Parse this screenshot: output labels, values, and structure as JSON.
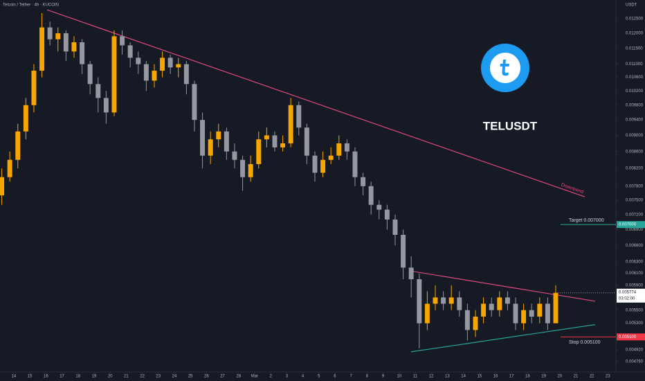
{
  "chart_data": {
    "type": "candlestick",
    "title": "Telcoin / Tether · 4h · KUCOIN",
    "symbol": "TELUSDT",
    "currency": "USDT",
    "log_scale": true,
    "grid": false,
    "up_color": "#f7a600",
    "down_color": "#9598a1",
    "xlim": [
      -0.86,
      37.5
    ],
    "ylim": [
      0.00462,
      0.01318
    ],
    "xticks": [
      {
        "value": 0,
        "label": "14"
      },
      {
        "value": 1,
        "label": "15"
      },
      {
        "value": 2,
        "label": "16"
      },
      {
        "value": 3,
        "label": "17"
      },
      {
        "value": 4,
        "label": "18"
      },
      {
        "value": 5,
        "label": "19"
      },
      {
        "value": 6,
        "label": "20"
      },
      {
        "value": 7,
        "label": "21"
      },
      {
        "value": 8,
        "label": "22"
      },
      {
        "value": 9,
        "label": "23"
      },
      {
        "value": 10,
        "label": "24"
      },
      {
        "value": 11,
        "label": "25"
      },
      {
        "value": 12,
        "label": "26"
      },
      {
        "value": 13,
        "label": "27"
      },
      {
        "value": 14,
        "label": "28"
      },
      {
        "value": 15,
        "label": "Mar"
      },
      {
        "value": 16,
        "label": "2"
      },
      {
        "value": 17,
        "label": "3"
      },
      {
        "value": 18,
        "label": "4"
      },
      {
        "value": 19,
        "label": "5"
      },
      {
        "value": 20,
        "label": "6"
      },
      {
        "value": 21,
        "label": "7"
      },
      {
        "value": 22,
        "label": "8"
      },
      {
        "value": 23,
        "label": "9"
      },
      {
        "value": 24,
        "label": "10"
      },
      {
        "value": 25,
        "label": "11"
      },
      {
        "value": 26,
        "label": "12"
      },
      {
        "value": 27,
        "label": "13"
      },
      {
        "value": 28,
        "label": "14"
      },
      {
        "value": 29,
        "label": "15"
      },
      {
        "value": 30,
        "label": "16"
      },
      {
        "value": 31,
        "label": "17"
      },
      {
        "value": 32,
        "label": "18"
      },
      {
        "value": 33,
        "label": "19"
      },
      {
        "value": 34,
        "label": "20"
      },
      {
        "value": 35,
        "label": "21"
      },
      {
        "value": 36,
        "label": "22"
      },
      {
        "value": 37,
        "label": "23"
      }
    ],
    "yticks": [
      {
        "value": 0.0125,
        "label": "0.012500"
      },
      {
        "value": 0.012,
        "label": "0.012000"
      },
      {
        "value": 0.0115,
        "label": "0.011500"
      },
      {
        "value": 0.011,
        "label": "0.011000"
      },
      {
        "value": 0.0106,
        "label": "0.010600"
      },
      {
        "value": 0.0102,
        "label": "0.010200"
      },
      {
        "value": 0.0098,
        "label": "0.009800"
      },
      {
        "value": 0.0094,
        "label": "0.009400"
      },
      {
        "value": 0.009,
        "label": "0.009000"
      },
      {
        "value": 0.0086,
        "label": "0.008600"
      },
      {
        "value": 0.0082,
        "label": "0.008200"
      },
      {
        "value": 0.0078,
        "label": "0.007800"
      },
      {
        "value": 0.0075,
        "label": "0.007500"
      },
      {
        "value": 0.0072,
        "label": "0.007200"
      },
      {
        "value": 0.0069,
        "label": "0.006900"
      },
      {
        "value": 0.0066,
        "label": "0.006600"
      },
      {
        "value": 0.0063,
        "label": "0.006300"
      },
      {
        "value": 0.0061,
        "label": "0.006100"
      },
      {
        "value": 0.0059,
        "label": "0.005900"
      },
      {
        "value": 0.0055,
        "label": "0.005500"
      },
      {
        "value": 0.0053,
        "label": "0.005300"
      },
      {
        "value": 0.00492,
        "label": "0.004920"
      },
      {
        "value": 0.00476,
        "label": "0.004760"
      }
    ],
    "x": [
      -0.75,
      -0.25,
      0.25,
      0.75,
      1.25,
      1.75,
      2.25,
      2.75,
      3.25,
      3.75,
      4.25,
      4.75,
      5.25,
      5.75,
      6.25,
      6.75,
      7.25,
      7.75,
      8.25,
      8.75,
      9.25,
      9.75,
      10.25,
      10.75,
      11.25,
      11.75,
      12.25,
      12.75,
      13.25,
      13.75,
      14.25,
      14.75,
      15.25,
      15.75,
      16.25,
      16.75,
      17.25,
      17.75,
      18.25,
      18.75,
      19.25,
      19.75,
      20.25,
      20.75,
      21.25,
      21.75,
      22.25,
      22.75,
      23.25,
      23.75,
      24.25,
      24.75,
      25.25,
      25.75,
      26.25,
      26.75,
      27.25,
      27.75,
      28.25,
      28.75,
      29.25,
      29.75,
      30.25,
      30.75,
      31.25,
      31.75,
      32.25,
      32.75,
      33.25,
      33.75
    ],
    "open": [
      0.0076,
      0.008,
      0.0084,
      0.0091,
      0.0098,
      0.0108,
      0.0122,
      0.0118,
      0.012,
      0.0114,
      0.0117,
      0.011,
      0.0104,
      0.01,
      0.0096,
      0.0119,
      0.0116,
      0.0112,
      0.011,
      0.0105,
      0.0108,
      0.0112,
      0.0109,
      0.011,
      0.0104,
      0.0094,
      0.0085,
      0.0089,
      0.0091,
      0.0086,
      0.0084,
      0.008,
      0.0083,
      0.0089,
      0.009,
      0.0087,
      0.0088,
      0.0098,
      0.0092,
      0.0085,
      0.0081,
      0.0084,
      0.0085,
      0.0088,
      0.0086,
      0.008,
      0.0078,
      0.0074,
      0.0073,
      0.0071,
      0.0068,
      0.0062,
      0.006,
      0.0053,
      0.0056,
      0.0057,
      0.0056,
      0.0057,
      0.0055,
      0.0052,
      0.0054,
      0.0056,
      0.0055,
      0.0057,
      0.0056,
      0.0053,
      0.0055,
      0.0054,
      0.0056,
      0.0053
    ],
    "high": [
      0.0082,
      0.0086,
      0.0093,
      0.01,
      0.011,
      0.0127,
      0.0124,
      0.0122,
      0.0121,
      0.0119,
      0.0118,
      0.0111,
      0.0106,
      0.0102,
      0.0121,
      0.0121,
      0.0117,
      0.0114,
      0.0111,
      0.011,
      0.0114,
      0.0113,
      0.0112,
      0.0111,
      0.0105,
      0.0096,
      0.0091,
      0.0093,
      0.0092,
      0.0088,
      0.0085,
      0.0085,
      0.0091,
      0.0092,
      0.0091,
      0.009,
      0.01,
      0.0099,
      0.0093,
      0.0086,
      0.0086,
      0.0087,
      0.009,
      0.0089,
      0.0087,
      0.0081,
      0.0079,
      0.0075,
      0.0074,
      0.0072,
      0.0069,
      0.0064,
      0.0061,
      0.0058,
      0.0059,
      0.0058,
      0.0059,
      0.0058,
      0.0056,
      0.0055,
      0.0057,
      0.0057,
      0.0058,
      0.0058,
      0.0057,
      0.0056,
      0.0056,
      0.0057,
      0.0057,
      0.0059
    ],
    "low": [
      0.0074,
      0.0079,
      0.0082,
      0.0089,
      0.0096,
      0.0106,
      0.0116,
      0.0114,
      0.0111,
      0.0112,
      0.0107,
      0.0101,
      0.0096,
      0.0093,
      0.0095,
      0.0113,
      0.0109,
      0.0107,
      0.0102,
      0.0103,
      0.0106,
      0.0107,
      0.0106,
      0.0101,
      0.0091,
      0.0082,
      0.0083,
      0.0087,
      0.0084,
      0.0082,
      0.0077,
      0.0079,
      0.0082,
      0.0087,
      0.0086,
      0.0086,
      0.0087,
      0.009,
      0.0083,
      0.0079,
      0.008,
      0.0083,
      0.0084,
      0.0084,
      0.0078,
      0.0076,
      0.0072,
      0.0071,
      0.0069,
      0.0066,
      0.006,
      0.0057,
      0.00494,
      0.0052,
      0.0055,
      0.0055,
      0.0055,
      0.0054,
      0.00505,
      0.0051,
      0.0053,
      0.0054,
      0.0054,
      0.0055,
      0.0052,
      0.0052,
      0.0053,
      0.0053,
      0.0052,
      0.0053
    ],
    "close": [
      0.008,
      0.0084,
      0.0091,
      0.0098,
      0.0108,
      0.0122,
      0.0118,
      0.012,
      0.0114,
      0.0117,
      0.011,
      0.0104,
      0.01,
      0.0096,
      0.0119,
      0.0116,
      0.0112,
      0.011,
      0.0105,
      0.0108,
      0.0112,
      0.0109,
      0.011,
      0.0104,
      0.0094,
      0.0085,
      0.0089,
      0.0091,
      0.0086,
      0.0084,
      0.008,
      0.0083,
      0.0089,
      0.009,
      0.0087,
      0.0088,
      0.0098,
      0.0092,
      0.0085,
      0.0081,
      0.0084,
      0.0085,
      0.0088,
      0.0086,
      0.008,
      0.0078,
      0.0074,
      0.0073,
      0.0071,
      0.0068,
      0.0062,
      0.006,
      0.0053,
      0.0056,
      0.0057,
      0.0056,
      0.0057,
      0.0055,
      0.0052,
      0.0054,
      0.0056,
      0.0055,
      0.0057,
      0.0056,
      0.0053,
      0.0055,
      0.0054,
      0.0056,
      0.0053,
      0.005774
    ],
    "trendlines": [
      {
        "name": "Downtrend",
        "color": "#e04a7e",
        "x": [
          2.07,
          35.56
        ],
        "y": [
          0.01282,
          0.00757
        ]
      },
      {
        "color": "#e04a7e",
        "x": [
          24.74,
          36.2
        ],
        "y": [
          0.00614,
          0.00564
        ]
      },
      {
        "color": "#26a69a",
        "x": [
          24.74,
          36.2
        ],
        "y": [
          0.00489,
          0.00528
        ]
      }
    ],
    "levels": [
      {
        "label": "Target 0.007000",
        "badge": "0.007000",
        "value": 0.007,
        "color": "#26a69a"
      },
      {
        "label": "Stop 0.005100",
        "badge": "0.005100",
        "value": 0.0051,
        "color": "#f23645"
      }
    ],
    "last": {
      "value": 0.005774,
      "label": "0.005774",
      "countdown": "03:02:00"
    }
  }
}
